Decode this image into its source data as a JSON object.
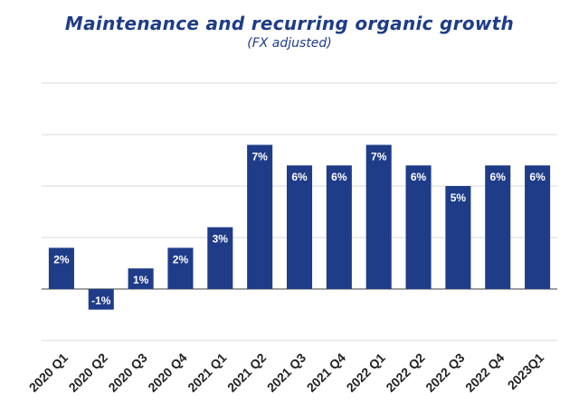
{
  "chart_data": {
    "type": "bar",
    "title": "Maintenance and recurring organic growth",
    "subtitle": "(FX adjusted)",
    "categories": [
      "2020 Q1",
      "2020 Q2",
      "2020 Q3",
      "2020 Q4",
      "2021 Q1",
      "2021 Q2",
      "2021 Q3",
      "2021 Q4",
      "2022 Q1",
      "2022 Q2",
      "2022 Q3",
      "2022 Q4",
      "2023Q1"
    ],
    "values": [
      2,
      -1,
      1,
      2,
      3,
      7,
      6,
      6,
      7,
      6,
      5,
      6,
      6
    ],
    "data_labels": [
      "2%",
      "-1%",
      "1%",
      "2%",
      "3%",
      "7%",
      "6%",
      "6%",
      "7%",
      "6%",
      "5%",
      "6%",
      "6%"
    ],
    "xlabel": "",
    "ylabel": "",
    "ylim": [
      -2.5,
      10
    ],
    "grid": true,
    "y_tick_labels": false,
    "bar_color": "#1f3c88",
    "label_color": "#ffffff",
    "grid_color": "#d9d9d9"
  }
}
